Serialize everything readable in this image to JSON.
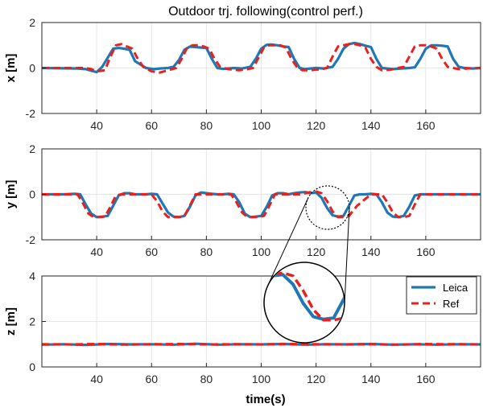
{
  "title": "Outdoor trj. following(control perf.)",
  "xlabel": "time(s)",
  "colors": {
    "leica": "#1f77b4",
    "ref": "#e8211f",
    "grid": "#e6e6e6",
    "axis": "#262626"
  },
  "chart_data": [
    {
      "type": "line",
      "panel": "x",
      "ylabel": "x [m]",
      "xlim": [
        20,
        180
      ],
      "ylim": [
        -2,
        2
      ],
      "xticks": [
        40,
        60,
        80,
        100,
        120,
        140,
        160
      ],
      "yticks": [
        -2,
        0,
        2
      ],
      "series": [
        {
          "name": "Leica",
          "x": [
            20,
            33,
            36,
            38,
            40,
            42,
            44,
            46,
            48,
            50,
            52,
            54,
            58,
            61,
            63,
            66,
            68,
            70,
            72,
            74,
            76,
            78,
            80,
            82,
            84,
            86,
            88,
            90,
            93,
            96,
            98,
            100,
            102,
            104,
            106,
            108,
            110,
            112,
            114,
            116,
            118,
            120,
            123,
            126,
            128,
            130,
            132,
            134,
            136,
            138,
            140,
            142,
            144,
            148,
            151,
            154,
            156,
            158,
            160,
            162,
            164,
            166,
            168,
            170,
            172,
            174,
            177,
            180
          ],
          "y": [
            0,
            -0.02,
            -0.05,
            -0.12,
            -0.18,
            0.05,
            0.45,
            0.85,
            0.88,
            0.85,
            0.8,
            0.3,
            0.0,
            -0.05,
            -0.02,
            0,
            0.05,
            0.35,
            0.8,
            0.94,
            0.92,
            0.9,
            0.88,
            0.4,
            0.0,
            -0.04,
            -0.02,
            0,
            -0.02,
            0.05,
            0.4,
            0.85,
            1.02,
            1.03,
            1.0,
            0.95,
            0.92,
            0.4,
            0.0,
            -0.05,
            -0.02,
            0,
            -0.02,
            0.05,
            0.4,
            0.85,
            1.05,
            1.1,
            1.05,
            0.98,
            0.92,
            0.4,
            0.0,
            -0.05,
            -0.02,
            0,
            0.03,
            0.4,
            0.85,
            1.0,
            1.0,
            0.98,
            0.95,
            0.4,
            0.05,
            0.0,
            -0.02,
            0
          ]
        },
        {
          "name": "Ref",
          "x": [
            20,
            36,
            38,
            40,
            43,
            45,
            47,
            49,
            51,
            53,
            55,
            57,
            60,
            63,
            66,
            69,
            71,
            73,
            75,
            77,
            79,
            81,
            83,
            85,
            88,
            92,
            95,
            97,
            99,
            101,
            103,
            105,
            107,
            109,
            111,
            113,
            115,
            118,
            122,
            124,
            126,
            128,
            130,
            132,
            134,
            136,
            138,
            140,
            142,
            144,
            147,
            150,
            152,
            154,
            156,
            158,
            160,
            162,
            164,
            166,
            168,
            170,
            172,
            175,
            180
          ],
          "y": [
            0,
            0,
            -0.05,
            -0.15,
            -0.1,
            0.5,
            1.0,
            1.05,
            0.95,
            0.85,
            0.4,
            0.05,
            -0.15,
            -0.2,
            -0.1,
            0,
            0.4,
            0.9,
            1.0,
            1.0,
            0.95,
            0.85,
            0.4,
            0.05,
            -0.05,
            -0.1,
            -0.05,
            0,
            0.45,
            0.9,
            1.0,
            1.0,
            1.0,
            0.9,
            0.4,
            0.05,
            -0.1,
            -0.1,
            -0.05,
            0,
            0.5,
            0.95,
            1.0,
            1.05,
            1.05,
            1.0,
            0.9,
            0.4,
            0.05,
            -0.1,
            -0.08,
            0,
            0.05,
            0.5,
            0.95,
            1.0,
            1.0,
            0.95,
            0.85,
            0.4,
            0.05,
            0,
            -0.05,
            -0.02,
            0
          ]
        }
      ]
    },
    {
      "type": "line",
      "panel": "y",
      "ylabel": "y [m]",
      "xlim": [
        20,
        180
      ],
      "ylim": [
        -2,
        2
      ],
      "xticks": [
        40,
        60,
        80,
        100,
        120,
        140,
        160
      ],
      "yticks": [
        -2,
        0,
        2
      ],
      "series": [
        {
          "name": "Leica",
          "x": [
            20,
            24,
            28,
            32,
            34,
            36,
            38,
            40,
            42,
            44,
            46,
            48,
            50,
            52,
            54,
            56,
            58,
            60,
            62,
            64,
            66,
            68,
            70,
            72,
            74,
            76,
            78,
            80,
            82,
            84,
            86,
            88,
            90,
            92,
            94,
            96,
            98,
            100,
            102,
            104,
            106,
            108,
            110,
            112,
            114,
            116,
            118,
            120,
            122,
            124,
            126,
            128,
            130,
            132,
            134,
            136,
            138,
            140,
            142,
            144,
            146,
            148,
            150,
            152,
            154,
            156,
            158,
            160,
            162,
            164,
            166,
            168,
            170,
            172,
            174,
            176,
            180
          ],
          "y": [
            0,
            0,
            0,
            0.02,
            0,
            -0.45,
            -0.85,
            -1.0,
            -0.98,
            -0.95,
            -0.5,
            -0.05,
            0.05,
            0.05,
            0,
            0,
            0,
            0.02,
            0,
            -0.4,
            -0.8,
            -0.98,
            -1.0,
            -0.95,
            -0.55,
            -0.05,
            0.08,
            0.05,
            0.02,
            0,
            0,
            0.02,
            0,
            -0.35,
            -0.85,
            -1.0,
            -0.98,
            -0.95,
            -0.55,
            -0.05,
            0.05,
            0.05,
            0,
            0.05,
            0.08,
            0.1,
            0.05,
            0.08,
            -0.15,
            -0.6,
            -0.92,
            -0.98,
            -0.95,
            -0.5,
            -0.05,
            0,
            0,
            0.02,
            0,
            -0.35,
            -0.8,
            -0.98,
            -1.0,
            -0.95,
            -0.55,
            -0.05,
            0,
            0,
            0,
            0,
            0,
            0,
            0,
            0,
            0,
            0,
            0
          ]
        },
        {
          "name": "Ref",
          "x": [
            20,
            30,
            33,
            35,
            37,
            39,
            41,
            43,
            45,
            47,
            49,
            51,
            55,
            60,
            62,
            64,
            66,
            68,
            70,
            72,
            74,
            76,
            78,
            82,
            86,
            89,
            91,
            93,
            95,
            97,
            99,
            101,
            103,
            105,
            109,
            114,
            116,
            118,
            120,
            122,
            124,
            126,
            128,
            130,
            132,
            135,
            140,
            144,
            146,
            148,
            150,
            152,
            154,
            156,
            158,
            162,
            168,
            174,
            180
          ],
          "y": [
            0,
            0,
            0,
            -0.4,
            -0.85,
            -1.0,
            -1.0,
            -0.98,
            -0.55,
            -0.05,
            0,
            0,
            0,
            0,
            -0.3,
            -0.75,
            -1.0,
            -1.0,
            -1.0,
            -0.95,
            -0.5,
            0,
            0,
            0,
            0,
            0,
            -0.35,
            -0.8,
            -1.0,
            -1.0,
            -1.0,
            -0.95,
            -0.5,
            0,
            0,
            0,
            0.05,
            0.1,
            0.12,
            0.05,
            -0.3,
            -0.75,
            -1.0,
            -1.0,
            -0.95,
            -0.5,
            0,
            0,
            -0.35,
            -0.8,
            -1.0,
            -1.0,
            -0.95,
            -0.45,
            0,
            0,
            0,
            0,
            0
          ]
        }
      ]
    },
    {
      "type": "line",
      "panel": "z",
      "ylabel": "z [m]",
      "xlim": [
        20,
        180
      ],
      "ylim": [
        0,
        4
      ],
      "xticks": [
        40,
        60,
        80,
        100,
        120,
        140,
        160
      ],
      "yticks": [
        0,
        2,
        4
      ],
      "legend": "top-right",
      "series": [
        {
          "name": "Leica",
          "x": [
            20,
            28,
            36,
            44,
            52,
            60,
            68,
            76,
            84,
            92,
            100,
            108,
            116,
            124,
            132,
            140,
            148,
            156,
            164,
            172,
            180
          ],
          "y": [
            0.98,
            1.0,
            0.97,
            1.01,
            0.99,
            1.0,
            0.98,
            1.02,
            0.98,
            1.0,
            0.99,
            1.01,
            0.98,
            1.0,
            0.99,
            1.01,
            0.98,
            1.0,
            0.98,
            1.0,
            0.99
          ]
        },
        {
          "name": "Ref",
          "x": [
            20,
            30,
            40,
            50,
            60,
            70,
            80,
            90,
            100,
            110,
            120,
            130,
            140,
            150,
            160,
            170,
            180
          ],
          "y": [
            1.0,
            0.99,
            1.01,
            0.98,
            1.0,
            1.01,
            0.99,
            1.0,
            0.99,
            1.01,
            1.0,
            0.99,
            1.0,
            0.98,
            1.01,
            1.0,
            0.99
          ]
        }
      ]
    }
  ]
}
